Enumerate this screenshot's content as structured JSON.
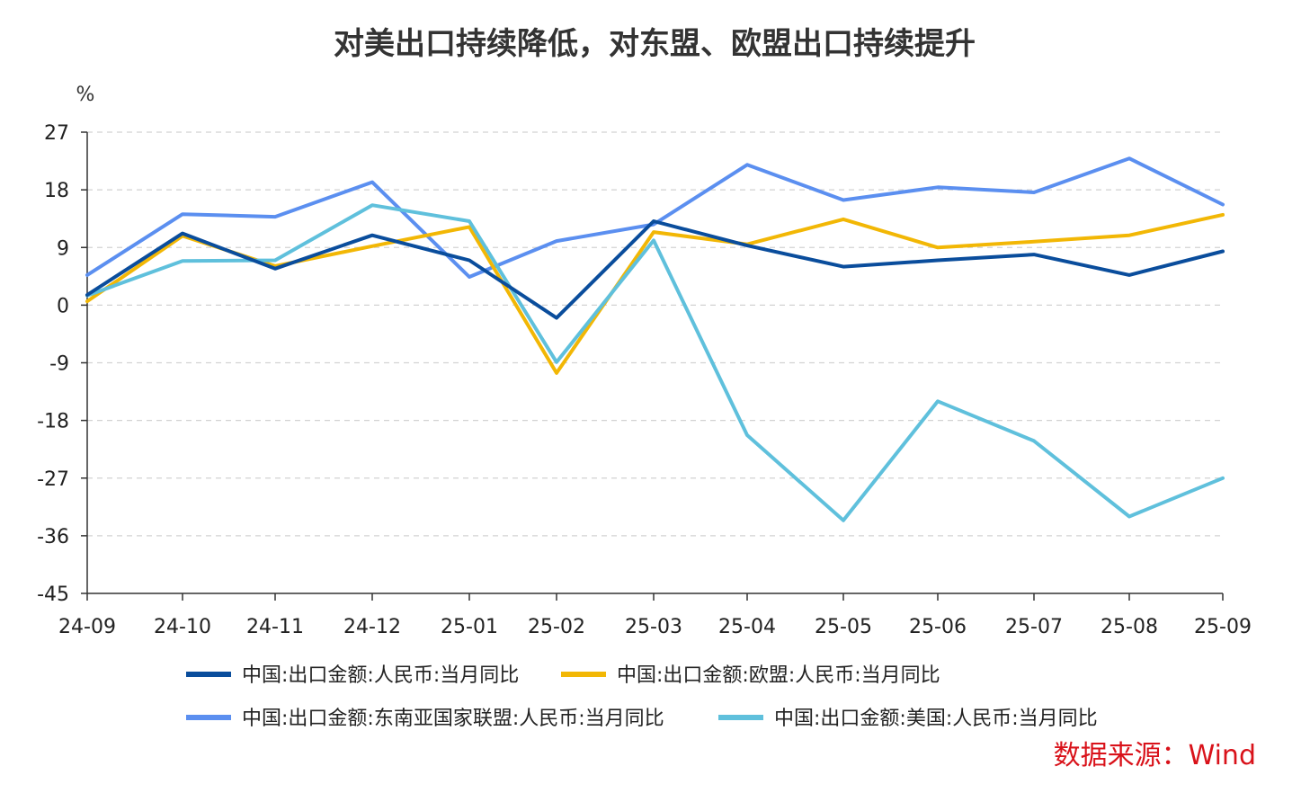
{
  "chart_data": {
    "type": "line",
    "title": "对美出口持续降低，对东盟、欧盟出口持续提升",
    "ylabel": "%",
    "ylim": [
      -45,
      27
    ],
    "yticks": [
      27,
      18,
      9,
      0,
      -9,
      -18,
      -27,
      -36,
      -45
    ],
    "ytick_labels": [
      "27",
      "18",
      "9",
      "0",
      "-9",
      "-18",
      "-27",
      "-36",
      "-45"
    ],
    "categories": [
      "24-09",
      "24-10",
      "24-11",
      "24-12",
      "25-01",
      "25-02",
      "25-03",
      "25-04",
      "25-05",
      "25-06",
      "25-07",
      "25-08",
      "25-09"
    ],
    "grid": true,
    "legend_position": "bottom",
    "series": [
      {
        "name": "中国:出口金额:人民币:当月同比",
        "color": "#0a4d9c",
        "values": [
          1.6,
          11.2,
          5.7,
          10.9,
          7.0,
          -2.0,
          13.1,
          9.3,
          6.0,
          7.0,
          7.9,
          4.7,
          8.4
        ]
      },
      {
        "name": "中国:出口金额:欧盟:人民币:当月同比",
        "color": "#f2b705",
        "values": [
          0.6,
          10.8,
          6.1,
          9.2,
          12.2,
          -10.6,
          11.4,
          9.5,
          13.4,
          9.0,
          9.9,
          10.9,
          14.1
        ]
      },
      {
        "name": "中国:出口金额:东南亚国家联盟:人民币:当月同比",
        "color": "#5b8ff0",
        "values": [
          4.7,
          14.2,
          13.8,
          19.2,
          4.4,
          10.0,
          12.6,
          21.9,
          16.4,
          18.4,
          17.6,
          22.9,
          15.7
        ]
      },
      {
        "name": "中国:出口金额:美国:人民币:当月同比",
        "color": "#5fc0dc",
        "values": [
          1.5,
          6.9,
          7.0,
          15.6,
          13.1,
          -8.9,
          10.1,
          -20.3,
          -33.6,
          -15.0,
          -21.2,
          -33.0,
          -27.0
        ]
      }
    ],
    "source": "数据来源：Wind"
  }
}
